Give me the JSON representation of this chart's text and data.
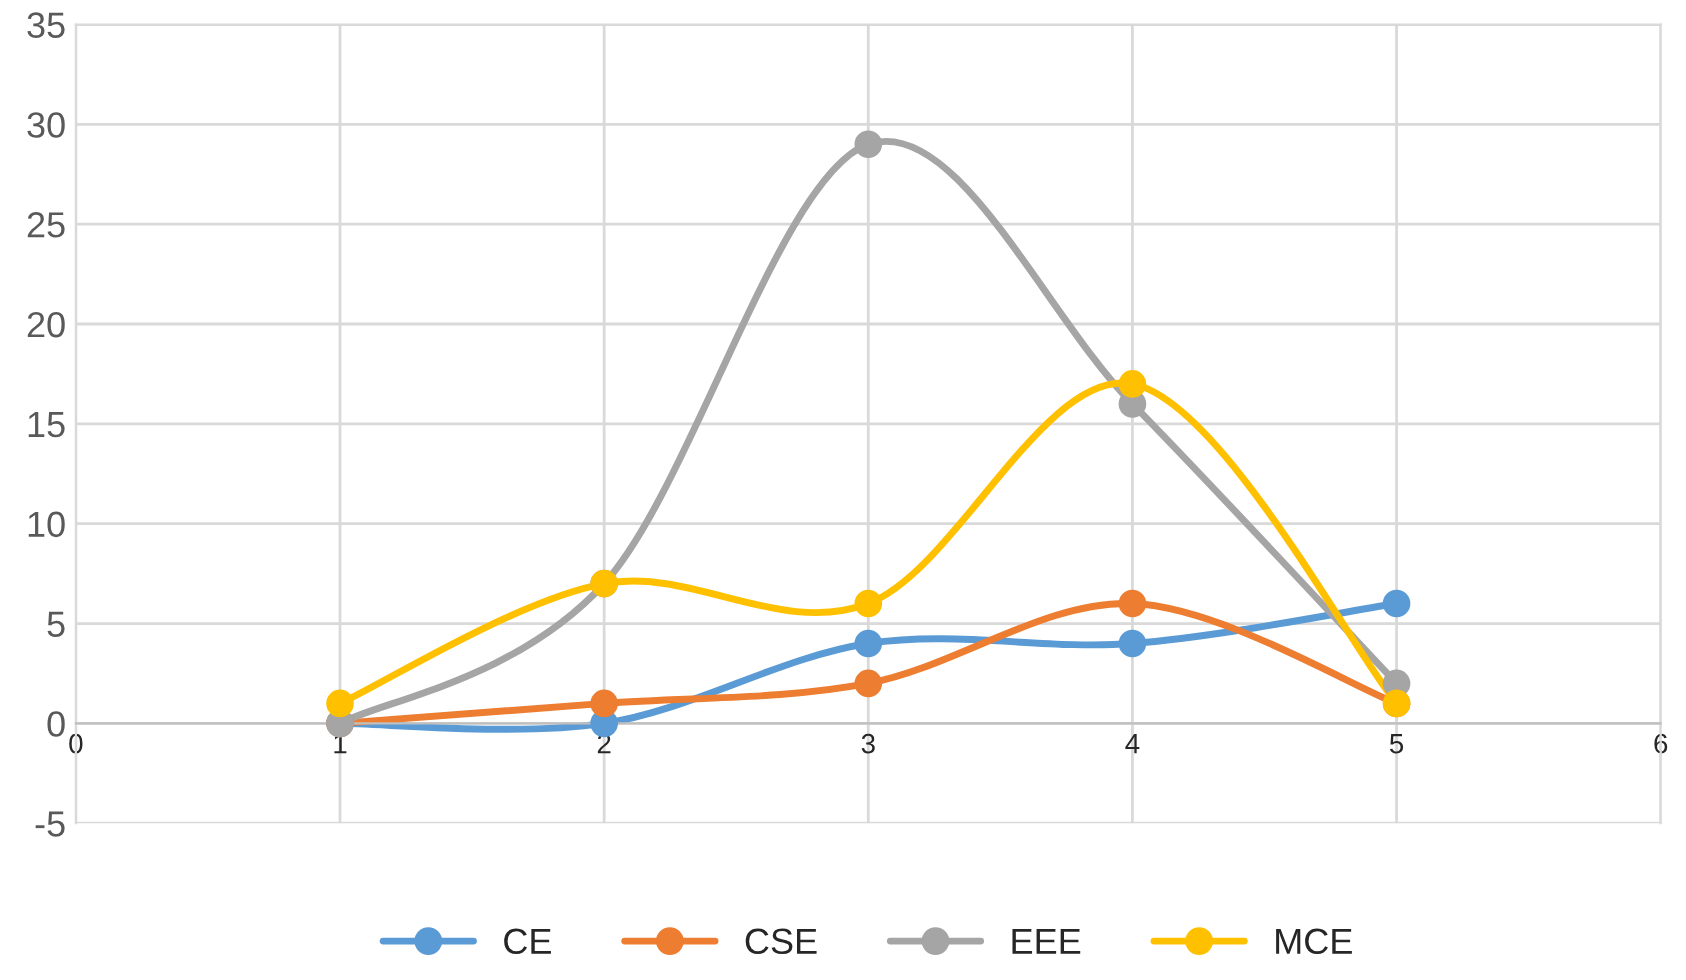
{
  "chart_data": {
    "type": "line",
    "x": [
      1,
      2,
      3,
      4,
      5
    ],
    "series": [
      {
        "name": "CE",
        "color": "#5b9bd5",
        "values": [
          0,
          0,
          4,
          4,
          6
        ]
      },
      {
        "name": "CSE",
        "color": "#ed7d31",
        "values": [
          0,
          1,
          2,
          6,
          1
        ]
      },
      {
        "name": "EEE",
        "color": "#a5a5a5",
        "values": [
          0,
          7,
          29,
          16,
          2
        ]
      },
      {
        "name": "MCE",
        "color": "#ffc000",
        "values": [
          1,
          7,
          6,
          17,
          1
        ]
      }
    ],
    "xlim": [
      0,
      6
    ],
    "xticks": [
      0,
      1,
      2,
      3,
      4,
      5,
      6
    ],
    "ylim": [
      -5,
      35
    ],
    "yticks": [
      -5,
      0,
      5,
      10,
      15,
      20,
      25,
      30,
      35
    ],
    "grid": true,
    "legend": "bottom",
    "marker": "circle",
    "line_style": "solid"
  }
}
